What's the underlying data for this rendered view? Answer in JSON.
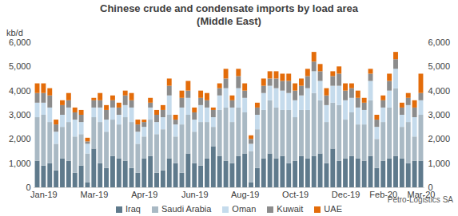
{
  "chart_data": {
    "type": "bar",
    "stacked": true,
    "title": "Chinese crude and condensate imports by load area",
    "subtitle": "(Middle East)",
    "y_label": "kb/d",
    "source": "Petro-Logistics SA",
    "grid": false,
    "legend": "bottom",
    "categories": [
      null,
      "Jan-19",
      null,
      null,
      null,
      null,
      null,
      null,
      null,
      "Mar-19",
      null,
      null,
      null,
      null,
      null,
      null,
      null,
      "Apr-19",
      null,
      null,
      null,
      null,
      null,
      null,
      null,
      "Jun-19",
      null,
      null,
      null,
      null,
      null,
      null,
      null,
      "Aug-19",
      null,
      null,
      null,
      null,
      null,
      null,
      null,
      "Oct-19",
      null,
      null,
      null,
      null,
      null,
      null,
      null,
      "Dec-19",
      null,
      null,
      null,
      null,
      null,
      "Feb-20",
      null,
      null,
      null,
      null,
      null,
      "Mar-20"
    ],
    "ylim": [
      0,
      6000
    ],
    "yticks": [
      0,
      {
        "value": 1000,
        "label": "1,000"
      },
      {
        "value": 2000,
        "label": "2,000"
      },
      {
        "value": 3000,
        "label": "3,000"
      },
      {
        "value": 4000,
        "label": "4,000"
      },
      {
        "value": 5000,
        "label": "5,000"
      },
      {
        "value": 6000,
        "label": "6,000"
      }
    ],
    "y2lim": [
      0,
      6000
    ],
    "y2ticks": [
      0,
      {
        "value": 1000,
        "label": "1,000"
      },
      {
        "value": 2000,
        "label": "2,000"
      },
      {
        "value": 3000,
        "label": "3,000"
      },
      {
        "value": 4000,
        "label": "4,000"
      },
      {
        "value": 5000,
        "label": "5,000"
      },
      {
        "value": 6000,
        "label": "6,000"
      }
    ],
    "series": [
      {
        "name": "Iraq",
        "color": "#5f7a8c",
        "values": [
          1100,
          900,
          1000,
          700,
          1200,
          1100,
          600,
          900,
          200,
          1600,
          1000,
          800,
          1300,
          1200,
          1100,
          800,
          600,
          1200,
          1300,
          600,
          700,
          1200,
          1000,
          600,
          1400,
          1000,
          900,
          1200,
          1700,
          1300,
          1100,
          1000,
          1300,
          1400,
          200,
          800,
          1200,
          1400,
          1200,
          1300,
          1000,
          1100,
          1300,
          1200,
          1300,
          1400,
          1000,
          1600,
          1100,
          1200,
          1300,
          1200,
          1100,
          1300,
          800,
          1100,
          1200,
          1300,
          1200,
          1000,
          1100,
          1100
        ]
      },
      {
        "name": "Saudi Arabia",
        "color": "#a9b9c4",
        "values": [
          1800,
          2100,
          1700,
          1100,
          1300,
          1600,
          1500,
          1300,
          1200,
          1300,
          1700,
          1500,
          1500,
          1400,
          1800,
          1900,
          1200,
          900,
          1500,
          1600,
          1700,
          1800,
          1100,
          2000,
          1600,
          1300,
          1800,
          1500,
          800,
          1900,
          2200,
          1700,
          2000,
          1700,
          1300,
          1600,
          2000,
          2200,
          2100,
          1900,
          2200,
          1800,
          1900,
          2000,
          2600,
          2200,
          1700,
          1900,
          2300,
          1600,
          1800,
          1400,
          1500,
          2300,
          1200,
          1600,
          2100,
          2800,
          1300,
          1700,
          1000,
          1900
        ]
      },
      {
        "name": "Oman",
        "color": "#c5dbec",
        "values": [
          600,
          500,
          600,
          500,
          500,
          600,
          700,
          500,
          400,
          400,
          600,
          500,
          500,
          400,
          500,
          600,
          500,
          400,
          500,
          500,
          500,
          800,
          500,
          700,
          700,
          500,
          700,
          600,
          400,
          600,
          800,
          600,
          800,
          600,
          300,
          600,
          700,
          600,
          800,
          800,
          700,
          700,
          600,
          900,
          900,
          800,
          700,
          700,
          800,
          800,
          600,
          700,
          600,
          800,
          500,
          600,
          700,
          800,
          500,
          700,
          800,
          600
        ]
      },
      {
        "name": "Kuwait",
        "color": "#8c8c8c",
        "values": [
          400,
          400,
          500,
          300,
          400,
          300,
          300,
          300,
          100,
          300,
          300,
          400,
          300,
          300,
          400,
          300,
          300,
          200,
          200,
          300,
          300,
          400,
          200,
          400,
          300,
          300,
          300,
          300,
          300,
          300,
          400,
          300,
          500,
          300,
          200,
          300,
          300,
          300,
          400,
          400,
          500,
          400,
          400,
          500,
          400,
          400,
          400,
          400,
          500,
          400,
          400,
          400,
          300,
          300,
          300,
          300,
          400,
          400,
          300,
          300,
          400,
          300
        ]
      },
      {
        "name": "UAE",
        "color": "#e36c0a",
        "values": [
          400,
          400,
          300,
          200,
          200,
          300,
          200,
          200,
          150,
          100,
          300,
          200,
          200,
          200,
          200,
          300,
          200,
          100,
          200,
          200,
          200,
          300,
          200,
          300,
          400,
          200,
          300,
          300,
          100,
          200,
          400,
          200,
          300,
          300,
          150,
          200,
          300,
          300,
          300,
          300,
          300,
          300,
          300,
          300,
          400,
          300,
          300,
          200,
          300,
          300,
          200,
          300,
          200,
          200,
          200,
          200,
          300,
          300,
          200,
          200,
          300,
          800
        ]
      }
    ]
  }
}
